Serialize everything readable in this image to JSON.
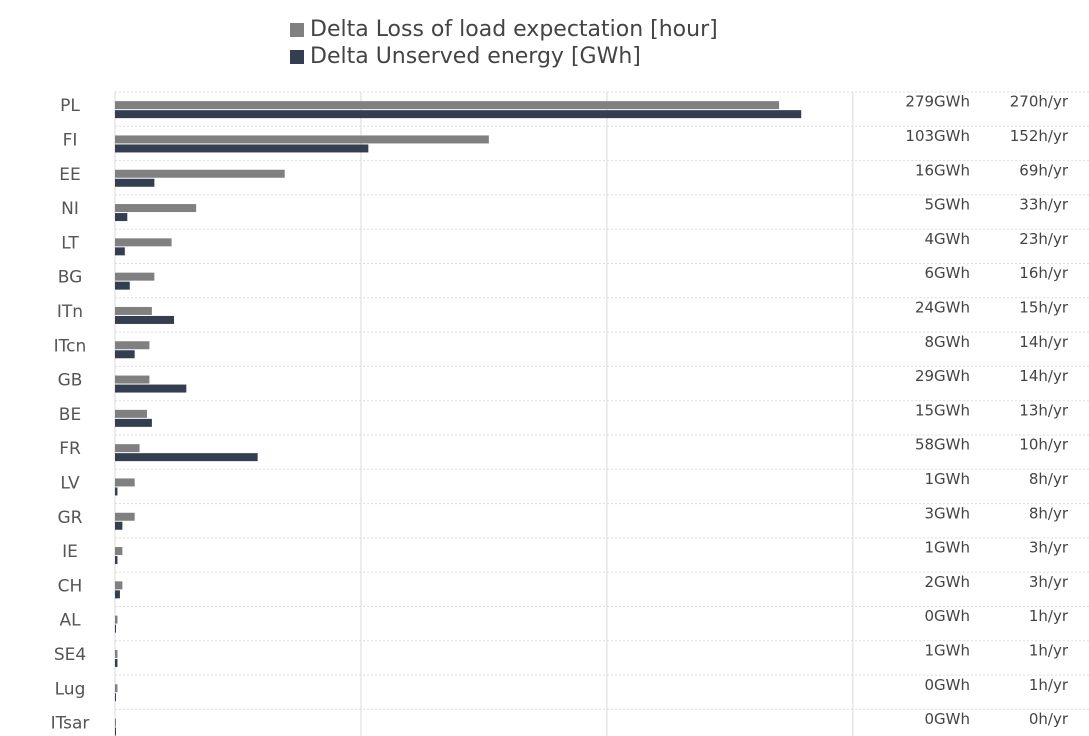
{
  "chart_data": {
    "type": "bar",
    "orientation": "horizontal",
    "categories": [
      "PL",
      "FI",
      "EE",
      "NI",
      "LT",
      "BG",
      "ITn",
      "ITcn",
      "GB",
      "BE",
      "FR",
      "LV",
      "GR",
      "IE",
      "CH",
      "AL",
      "SE4",
      "Lug",
      "ITsar"
    ],
    "series": [
      {
        "name": "Delta Loss of load expectation [hour]",
        "color": "#808080",
        "values": [
          270,
          152,
          69,
          33,
          23,
          16,
          15,
          14,
          14,
          13,
          10,
          8,
          8,
          3,
          3,
          1,
          1,
          1,
          0
        ],
        "value_labels": [
          "270h/yr",
          "152h/yr",
          "69h/yr",
          "33h/yr",
          "23h/yr",
          "16h/yr",
          "15h/yr",
          "14h/yr",
          "14h/yr",
          "13h/yr",
          "10h/yr",
          "8h/yr",
          "8h/yr",
          "3h/yr",
          "3h/yr",
          "1h/yr",
          "1h/yr",
          "1h/yr",
          "0h/yr"
        ]
      },
      {
        "name": "Delta Unserved energy [GWh]",
        "color": "#333f50",
        "values": [
          279,
          103,
          16,
          5,
          4,
          6,
          24,
          8,
          29,
          15,
          58,
          1,
          3,
          1,
          2,
          0,
          1,
          0,
          0
        ],
        "value_labels": [
          "279GWh",
          "103GWh",
          "16GWh",
          "5GWh",
          "4GWh",
          "6GWh",
          "24GWh",
          "8GWh",
          "29GWh",
          "15GWh",
          "58GWh",
          "1GWh",
          "3GWh",
          "1GWh",
          "2GWh",
          "0GWh",
          "1GWh",
          "0GWh",
          "0GWh"
        ]
      }
    ],
    "xlim": [
      0,
      396
    ],
    "xticks": [
      0,
      100,
      200,
      300
    ],
    "grid": true
  }
}
